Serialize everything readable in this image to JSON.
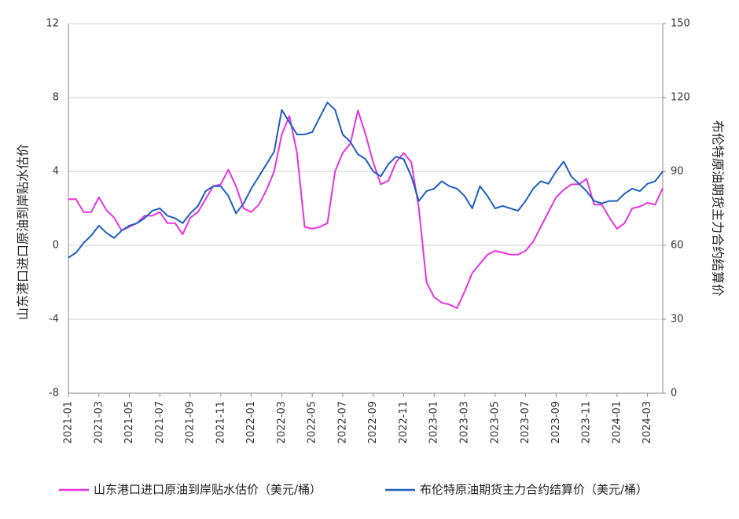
{
  "chart_data": {
    "type": "line",
    "y_label": "山东港口进口原油到岸贴水估价",
    "y2_label": "布伦特原油期货主力合约结算价",
    "categories": [
      "2021-01",
      null,
      null,
      null,
      "2021-03",
      null,
      null,
      null,
      "2021-05",
      null,
      null,
      null,
      "2021-07",
      null,
      null,
      null,
      "2021-09",
      null,
      null,
      null,
      "2021-11",
      null,
      null,
      null,
      "2022-01",
      null,
      null,
      null,
      "2022-03",
      null,
      null,
      null,
      "2022-05",
      null,
      null,
      null,
      "2022-07",
      null,
      null,
      null,
      "2022-09",
      null,
      null,
      null,
      "2022-11",
      null,
      null,
      null,
      "2023-01",
      null,
      null,
      null,
      "2023-03",
      null,
      null,
      null,
      "2023-05",
      null,
      null,
      null,
      "2023-07",
      null,
      null,
      null,
      "2023-09",
      null,
      null,
      null,
      "2023-11",
      null,
      null,
      null,
      "2024-01",
      null,
      null,
      null,
      "2024-03",
      null,
      null
    ],
    "series": [
      {
        "name": "山东港口进口原油到岸贴水估价（美元/桶）",
        "color": "#e633e0",
        "axis": "y",
        "values": [
          2.5,
          2.5,
          1.8,
          1.8,
          2.6,
          1.9,
          1.5,
          0.8,
          1.0,
          1.2,
          1.6,
          1.6,
          1.8,
          1.2,
          1.2,
          0.6,
          1.5,
          1.8,
          2.5,
          3.2,
          3.3,
          4.1,
          3.2,
          2.0,
          1.8,
          2.2,
          3.0,
          4.0,
          6.0,
          7.0,
          5.0,
          1.0,
          0.9,
          1.0,
          1.2,
          4.0,
          5.0,
          5.5,
          7.3,
          6.0,
          4.5,
          3.3,
          3.5,
          4.5,
          5.0,
          4.5,
          2.0,
          -2.0,
          -2.8,
          -3.1,
          -3.2,
          -3.4,
          -2.5,
          -1.5,
          -1.0,
          -0.5,
          -0.3,
          -0.4,
          -0.5,
          -0.5,
          -0.3,
          0.2,
          1.0,
          1.8,
          2.6,
          3.0,
          3.3,
          3.3,
          3.6,
          2.2,
          2.2,
          1.5,
          0.9,
          1.2,
          2.0,
          2.1,
          2.3,
          2.2,
          3.1
        ]
      },
      {
        "name": "布伦特原油期货主力合约结算价（美元/桶）",
        "color": "#1f5fbf",
        "axis": "y2",
        "values": [
          55,
          57,
          61,
          64,
          68,
          65,
          63,
          66,
          68,
          69,
          71,
          74,
          75,
          72,
          71,
          69,
          73,
          76,
          82,
          84,
          84,
          80,
          73,
          77,
          83,
          88,
          93,
          98,
          115,
          110,
          105,
          105,
          106,
          112,
          118,
          115,
          105,
          102,
          97,
          95,
          90,
          88,
          93,
          96,
          95,
          88,
          78,
          82,
          83,
          86,
          84,
          83,
          80,
          75,
          84,
          80,
          75,
          76,
          75,
          74,
          78,
          83,
          86,
          85,
          90,
          94,
          88,
          85,
          82,
          78,
          77,
          78,
          78,
          81,
          83,
          82,
          85,
          86,
          90
        ]
      }
    ],
    "ylim": [
      -8,
      12
    ],
    "yticks": [
      -8,
      -4,
      0,
      4,
      8,
      12
    ],
    "y2lim": [
      0,
      150
    ],
    "y2ticks": [
      0,
      30,
      60,
      90,
      120,
      150
    ],
    "grid": true,
    "legend": "bottom"
  }
}
